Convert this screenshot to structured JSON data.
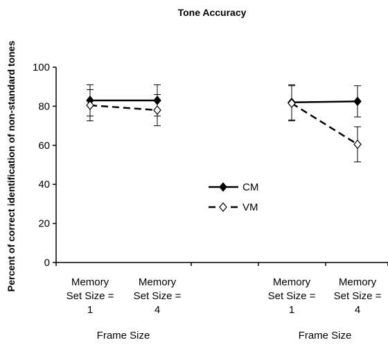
{
  "chart_data": {
    "type": "line",
    "title": "Tone Accuracy",
    "ylabel": "Percent of correct identification of non-standard tones",
    "ylim": [
      0,
      100
    ],
    "yticks": [
      0,
      20,
      40,
      60,
      80,
      100
    ],
    "grid": false,
    "legend_position": "center",
    "groups": [
      {
        "name": "Frame Size",
        "categories": [
          [
            "Memory",
            "Set Size =",
            "1"
          ],
          [
            "Memory",
            "Set Size =",
            "4"
          ]
        ]
      },
      {
        "name": "Frame Size",
        "categories": [
          [
            "Memory",
            "Set Size =",
            "1"
          ],
          [
            "Memory",
            "Set Size =",
            "4"
          ]
        ]
      }
    ],
    "series": [
      {
        "name": "CM",
        "marker": "filled-diamond",
        "line_style": "solid",
        "color": "#000000",
        "values": [
          [
            83,
            83
          ],
          [
            82,
            82.5
          ]
        ],
        "error": [
          [
            8,
            8
          ],
          [
            9,
            8
          ]
        ]
      },
      {
        "name": "VM",
        "marker": "open-diamond",
        "line_style": "dashed",
        "color": "#000000",
        "values": [
          [
            80.5,
            78
          ],
          [
            81.5,
            60.5
          ]
        ],
        "error": [
          [
            8,
            8
          ],
          [
            9,
            9
          ]
        ]
      }
    ]
  }
}
